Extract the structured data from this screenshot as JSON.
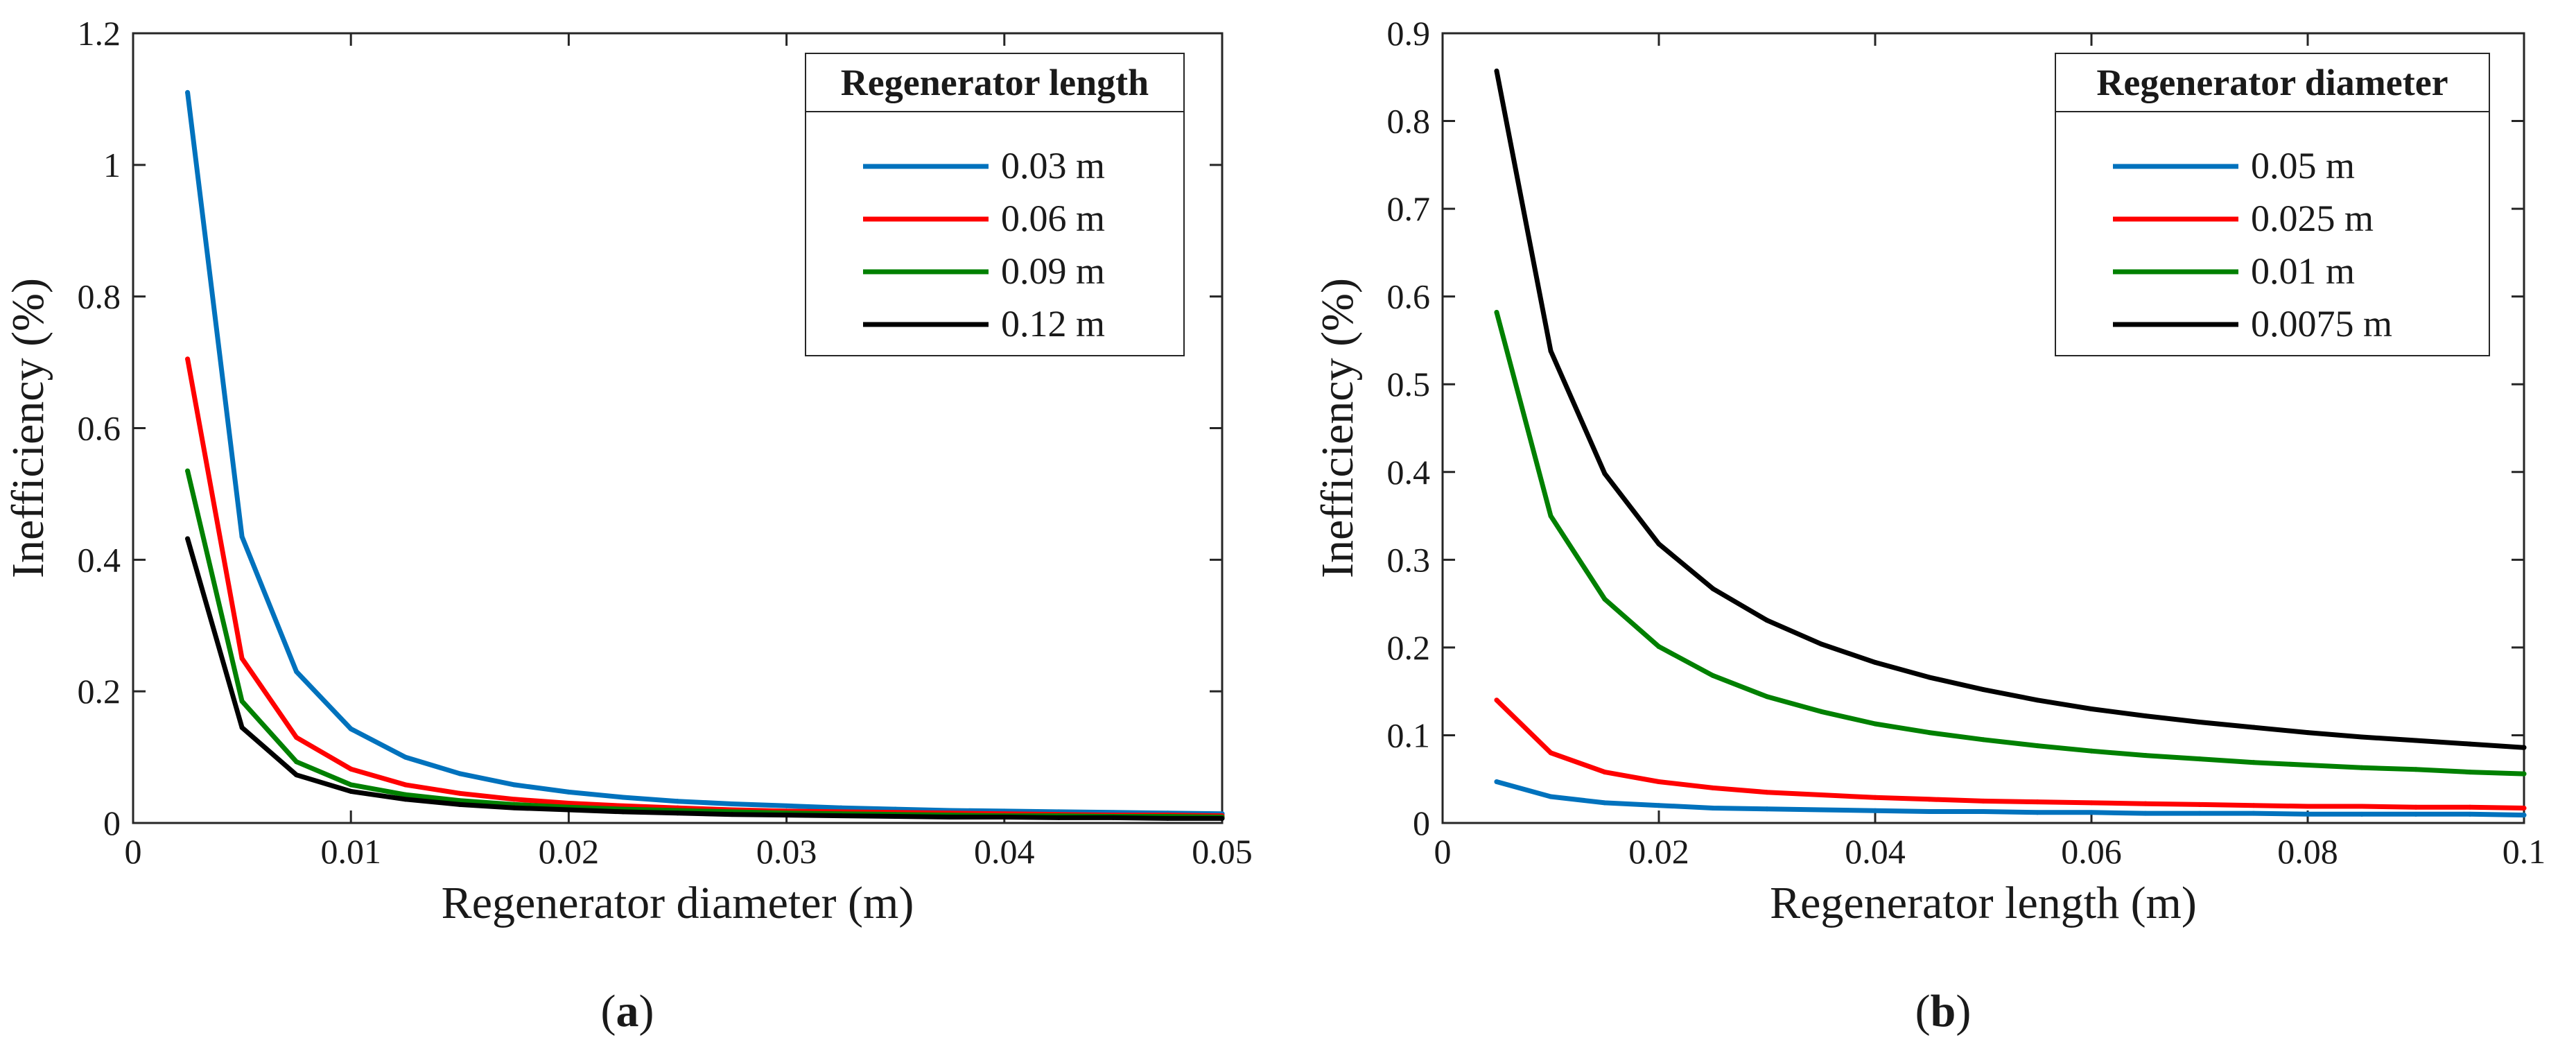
{
  "chart_data": [
    {
      "type": "line",
      "panel_label": "a",
      "xlabel": "Regenerator diameter (m)",
      "ylabel": "Inefficiency (%)",
      "xlim": [
        0,
        0.05
      ],
      "ylim": [
        0,
        1.2
      ],
      "xticks": [
        0,
        0.01,
        0.02,
        0.03,
        0.04,
        0.05
      ],
      "xtick_labels": [
        "0",
        "0.01",
        "0.02",
        "0.03",
        "0.04",
        "0.05"
      ],
      "yticks": [
        0,
        0.2,
        0.4,
        0.6,
        0.8,
        1,
        1.2
      ],
      "ytick_labels": [
        "0",
        "0.2",
        "0.4",
        "0.6",
        "0.8",
        "1",
        "1.2"
      ],
      "legend_title": "Regenerator length",
      "legend_position": "top-right",
      "x": [
        0.0025,
        0.005,
        0.0075,
        0.01,
        0.0125,
        0.015,
        0.0175,
        0.02,
        0.0225,
        0.025,
        0.0275,
        0.03,
        0.0325,
        0.035,
        0.0375,
        0.04,
        0.0425,
        0.045,
        0.0475,
        0.05
      ],
      "series": [
        {
          "name": "0.03 m",
          "color": "#0072BD",
          "values": [
            1.11,
            0.435,
            0.23,
            0.143,
            0.1,
            0.075,
            0.058,
            0.047,
            0.039,
            0.033,
            0.029,
            0.026,
            0.023,
            0.021,
            0.019,
            0.018,
            0.017,
            0.016,
            0.015,
            0.014
          ]
        },
        {
          "name": "0.06 m",
          "color": "#FF0000",
          "values": [
            0.705,
            0.25,
            0.13,
            0.082,
            0.058,
            0.045,
            0.036,
            0.03,
            0.026,
            0.023,
            0.02,
            0.018,
            0.017,
            0.016,
            0.015,
            0.014,
            0.013,
            0.012,
            0.012,
            0.011
          ]
        },
        {
          "name": "0.09 m",
          "color": "#008000",
          "values": [
            0.535,
            0.185,
            0.093,
            0.058,
            0.043,
            0.034,
            0.028,
            0.024,
            0.021,
            0.019,
            0.017,
            0.015,
            0.014,
            0.013,
            0.012,
            0.011,
            0.011,
            0.01,
            0.01,
            0.009
          ]
        },
        {
          "name": "0.12 m",
          "color": "#000000",
          "values": [
            0.432,
            0.145,
            0.073,
            0.048,
            0.036,
            0.028,
            0.023,
            0.02,
            0.017,
            0.015,
            0.013,
            0.012,
            0.011,
            0.01,
            0.009,
            0.009,
            0.008,
            0.008,
            0.007,
            0.007
          ]
        }
      ]
    },
    {
      "type": "line",
      "panel_label": "b",
      "xlabel": "Regenerator length (m)",
      "ylabel": "Inefficiency (%)",
      "xlim": [
        0,
        0.1
      ],
      "ylim": [
        0,
        0.9
      ],
      "xticks": [
        0,
        0.02,
        0.04,
        0.06,
        0.08,
        0.1
      ],
      "xtick_labels": [
        "0",
        "0.02",
        "0.04",
        "0.06",
        "0.08",
        "0.1"
      ],
      "yticks": [
        0,
        0.1,
        0.2,
        0.3,
        0.4,
        0.5,
        0.6,
        0.7,
        0.8,
        0.9
      ],
      "ytick_labels": [
        "0",
        "0.1",
        "0.2",
        "0.3",
        "0.4",
        "0.5",
        "0.6",
        "0.7",
        "0.8",
        "0.9"
      ],
      "legend_title": "Regenerator diameter",
      "legend_position": "top-right",
      "x": [
        0.005,
        0.01,
        0.015,
        0.02,
        0.025,
        0.03,
        0.035,
        0.04,
        0.045,
        0.05,
        0.055,
        0.06,
        0.065,
        0.07,
        0.075,
        0.08,
        0.085,
        0.09,
        0.095,
        0.1
      ],
      "series": [
        {
          "name": "0.05 m",
          "color": "#0072BD",
          "values": [
            0.047,
            0.03,
            0.023,
            0.02,
            0.017,
            0.016,
            0.015,
            0.014,
            0.013,
            0.013,
            0.012,
            0.012,
            0.011,
            0.011,
            0.011,
            0.01,
            0.01,
            0.01,
            0.01,
            0.009
          ]
        },
        {
          "name": "0.025 m",
          "color": "#FF0000",
          "values": [
            0.14,
            0.08,
            0.058,
            0.047,
            0.04,
            0.035,
            0.032,
            0.029,
            0.027,
            0.025,
            0.024,
            0.023,
            0.022,
            0.021,
            0.02,
            0.019,
            0.019,
            0.018,
            0.018,
            0.017
          ]
        },
        {
          "name": "0.01 m",
          "color": "#008000",
          "values": [
            0.582,
            0.35,
            0.255,
            0.201,
            0.168,
            0.144,
            0.127,
            0.113,
            0.103,
            0.095,
            0.088,
            0.082,
            0.077,
            0.073,
            0.069,
            0.066,
            0.063,
            0.061,
            0.058,
            0.056
          ]
        },
        {
          "name": "0.0075 m",
          "color": "#000000",
          "values": [
            0.857,
            0.538,
            0.398,
            0.318,
            0.267,
            0.231,
            0.204,
            0.183,
            0.166,
            0.152,
            0.14,
            0.13,
            0.122,
            0.115,
            0.109,
            0.103,
            0.098,
            0.094,
            0.09,
            0.086
          ]
        }
      ]
    }
  ]
}
